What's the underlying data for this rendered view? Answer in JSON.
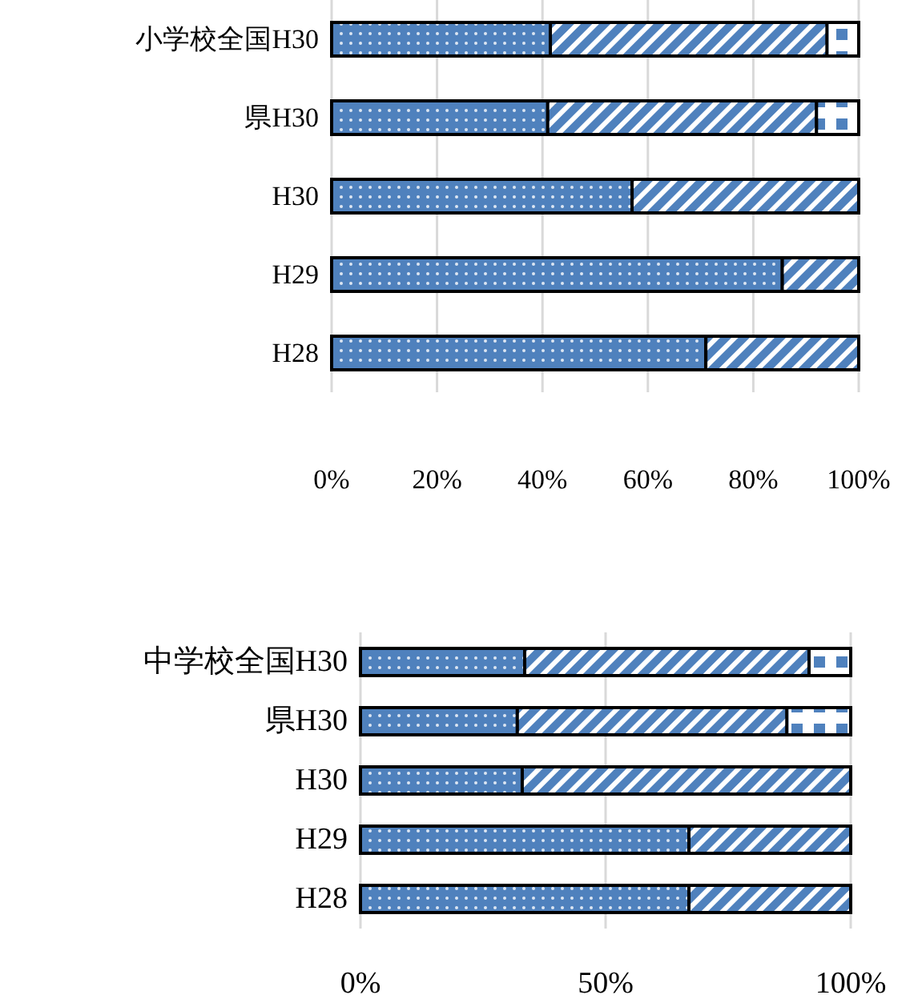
{
  "chart_data": [
    {
      "type": "bar",
      "orientation": "horizontal",
      "stacked": true,
      "categories": [
        "小学校全国H30",
        "県H30",
        "H30",
        "H29",
        "H28"
      ],
      "series": [
        {
          "color": "#4f81bd",
          "values": [
            41.5,
            41,
            57,
            85.5,
            71
          ]
        },
        {
          "color": "#4f81bd",
          "values": [
            52.5,
            51,
            43,
            14.5,
            29
          ]
        },
        {
          "color": "#4f81bd",
          "values": [
            6,
            8,
            0,
            0,
            0
          ]
        }
      ],
      "xlim": [
        0,
        100
      ],
      "xticks": [
        {
          "value": 0,
          "label": "0%"
        },
        {
          "value": 20,
          "label": "20%"
        },
        {
          "value": 40,
          "label": "40%"
        },
        {
          "value": 60,
          "label": "60%"
        },
        {
          "value": 80,
          "label": "80%"
        },
        {
          "value": 100,
          "label": "100%"
        }
      ],
      "grid": "x"
    },
    {
      "type": "bar",
      "orientation": "horizontal",
      "stacked": true,
      "categories": [
        "中学校全国H30",
        "県H30",
        "H30",
        "H29",
        "H28"
      ],
      "series": [
        {
          "color": "#4f81bd",
          "values": [
            33.5,
            32,
            33,
            67,
            67
          ]
        },
        {
          "color": "#4f81bd",
          "values": [
            58,
            55,
            67,
            33,
            33
          ]
        },
        {
          "color": "#4f81bd",
          "values": [
            8.5,
            13,
            0,
            0,
            0
          ]
        }
      ],
      "xlim": [
        0,
        100
      ],
      "xticks": [
        {
          "value": 0,
          "label": "0%"
        },
        {
          "value": 50,
          "label": "50%"
        },
        {
          "value": 100,
          "label": "100%"
        }
      ],
      "grid": "x"
    }
  ]
}
